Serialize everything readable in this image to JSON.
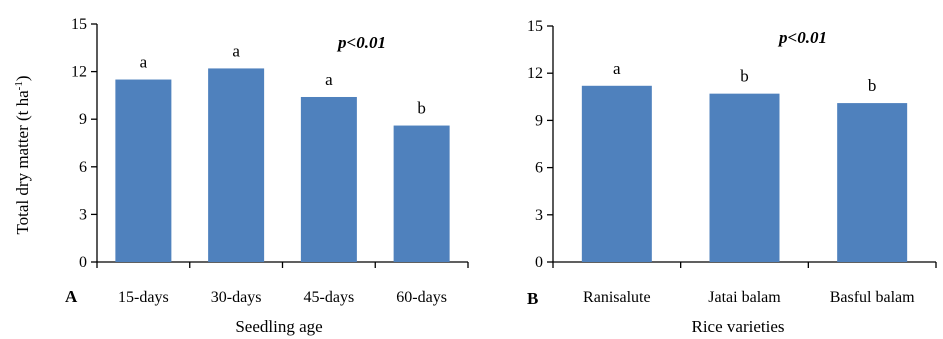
{
  "chart_data": [
    {
      "panel": "A",
      "type": "bar",
      "categories": [
        "15-days",
        "30-days",
        "45-days",
        "60-days"
      ],
      "values": [
        11.5,
        12.2,
        10.4,
        8.6
      ],
      "bar_labels": [
        "a",
        "a",
        "a",
        "b"
      ],
      "annotation": "p<0.01",
      "xlabel": "Seedling age",
      "ylabel": "Total dry matter (t ha",
      "ylabel_sup": "-1",
      "ylabel_end": ")",
      "ylim": [
        0,
        15
      ],
      "yticks": [
        0,
        3,
        6,
        9,
        12,
        15
      ],
      "grid": false,
      "color": "#4f81bd"
    },
    {
      "panel": "B",
      "type": "bar",
      "categories": [
        "Ranisalute",
        "Jatai balam",
        "Basful balam"
      ],
      "values": [
        11.2,
        10.7,
        10.1
      ],
      "bar_labels": [
        "a",
        "b",
        "b"
      ],
      "annotation": "p<0.01",
      "xlabel": "Rice varieties",
      "ylim": [
        0,
        15
      ],
      "yticks": [
        0,
        3,
        6,
        9,
        12,
        15
      ],
      "grid": false,
      "color": "#4f81bd"
    }
  ]
}
